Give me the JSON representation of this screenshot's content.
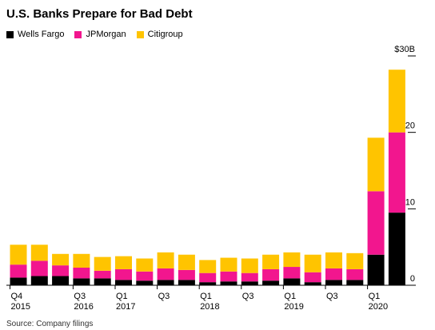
{
  "chart_data": {
    "type": "bar",
    "stacked": true,
    "title": "U.S. Banks Prepare for Bad Debt",
    "source": "Source: Company filings",
    "xlabel": "",
    "ylabel": "",
    "ylim": [
      0,
      30
    ],
    "yticks": [
      {
        "value": 0,
        "label": "0"
      },
      {
        "value": 10,
        "label": "10"
      },
      {
        "value": 20,
        "label": "20"
      },
      {
        "value": 30,
        "label": "$30B"
      }
    ],
    "grid": false,
    "legend_position": "top-left",
    "categories": [
      "Q4 2015",
      "Q1 2016",
      "Q2 2016",
      "Q3 2016",
      "Q4 2016",
      "Q1 2017",
      "Q2 2017",
      "Q3 2017",
      "Q4 2017",
      "Q1 2018",
      "Q2 2018",
      "Q3 2018",
      "Q4 2018",
      "Q1 2019",
      "Q2 2019",
      "Q3 2019",
      "Q4 2019",
      "Q1 2020",
      "Q2 2020"
    ],
    "tick_labels": [
      {
        "index": 0,
        "line1": "Q4",
        "line2": "2015"
      },
      {
        "index": 3,
        "line1": "Q3",
        "line2": "2016"
      },
      {
        "index": 5,
        "line1": "Q1",
        "line2": "2017"
      },
      {
        "index": 7,
        "line1": "Q3",
        "line2": ""
      },
      {
        "index": 9,
        "line1": "Q1",
        "line2": "2018"
      },
      {
        "index": 11,
        "line1": "Q3",
        "line2": ""
      },
      {
        "index": 13,
        "line1": "Q1",
        "line2": "2019"
      },
      {
        "index": 15,
        "line1": "Q3",
        "line2": ""
      },
      {
        "index": 17,
        "line1": "Q1",
        "line2": "2020"
      }
    ],
    "series": [
      {
        "name": "Wells Fargo",
        "color": "#000000",
        "values": [
          1.0,
          1.2,
          1.2,
          0.9,
          0.9,
          0.7,
          0.6,
          0.7,
          0.7,
          0.4,
          0.5,
          0.5,
          0.6,
          0.9,
          0.4,
          0.7,
          0.7,
          4.0,
          9.5
        ]
      },
      {
        "name": "JPMorgan",
        "color": "#f2168e",
        "values": [
          1.7,
          2.0,
          1.4,
          1.4,
          1.0,
          1.4,
          1.2,
          1.5,
          1.3,
          1.2,
          1.3,
          1.1,
          1.5,
          1.5,
          1.3,
          1.5,
          1.4,
          8.3,
          10.5
        ]
      },
      {
        "name": "Citigroup",
        "color": "#ffc400",
        "values": [
          2.6,
          2.1,
          1.5,
          1.8,
          1.8,
          1.7,
          1.7,
          2.1,
          2.0,
          1.7,
          1.8,
          1.9,
          1.9,
          1.9,
          2.3,
          2.1,
          2.1,
          7.0,
          8.2
        ]
      }
    ]
  }
}
